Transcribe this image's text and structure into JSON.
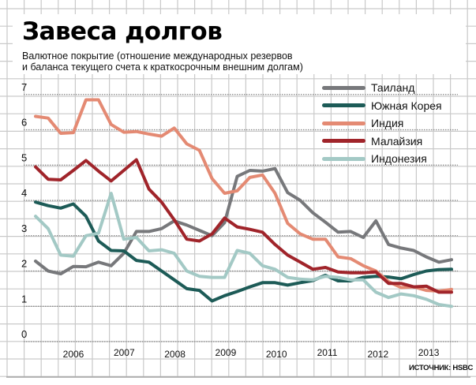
{
  "header": {
    "title": "Завеса долгов",
    "subtitle_line1": "Валютное покрытие (отношение международных резервов",
    "subtitle_line2": "и баланса текущего счета к краткосрочным внешним долгам)"
  },
  "source": "ИСТОЧНИК: HSBC",
  "chart_data": {
    "type": "line",
    "title": "Завеса долгов",
    "xlabel": "",
    "ylabel": "",
    "ylim": [
      0,
      7
    ],
    "yticks": [
      "0",
      "1",
      "2",
      "3",
      "4",
      "5",
      "6",
      "7"
    ],
    "x_tick_labels": [
      "2006",
      "2007",
      "2008",
      "2009",
      "2010",
      "2011",
      "2012",
      "2013"
    ],
    "points_per_series": 34,
    "legend_placement": "top-right",
    "grid": true,
    "series": [
      {
        "name": "Таиланд",
        "color": "#77787b",
        "values": [
          2.28,
          2.0,
          1.92,
          2.13,
          2.12,
          2.25,
          2.15,
          2.5,
          3.12,
          3.12,
          3.2,
          3.42,
          3.3,
          3.15,
          3.0,
          3.37,
          4.68,
          4.85,
          4.83,
          4.9,
          4.22,
          4.0,
          3.65,
          3.38,
          3.1,
          3.12,
          2.95,
          3.42,
          2.75,
          2.65,
          2.58,
          2.4,
          2.25,
          2.32
        ]
      },
      {
        "name": "Южная Корея",
        "color": "#1d5b57",
        "values": [
          3.95,
          3.85,
          3.78,
          3.9,
          3.55,
          2.85,
          2.58,
          2.57,
          2.3,
          2.25,
          2.0,
          1.75,
          1.5,
          1.45,
          1.15,
          1.3,
          1.42,
          1.55,
          1.67,
          1.67,
          1.6,
          1.67,
          1.73,
          1.88,
          1.72,
          1.72,
          1.82,
          1.85,
          1.83,
          1.78,
          1.9,
          2.0,
          2.04,
          2.05
        ]
      },
      {
        "name": "Индия",
        "color": "#e48a73",
        "values": [
          6.38,
          6.33,
          5.9,
          5.92,
          6.85,
          6.85,
          6.15,
          5.93,
          5.95,
          5.88,
          5.82,
          6.05,
          5.6,
          5.42,
          4.62,
          4.2,
          4.27,
          4.65,
          4.72,
          4.2,
          3.35,
          3.05,
          2.9,
          2.9,
          2.4,
          2.35,
          2.15,
          2.0,
          1.7,
          1.53,
          1.55,
          1.45,
          1.43,
          1.48
        ]
      },
      {
        "name": "Малайзия",
        "color": "#a0242a",
        "values": [
          4.95,
          4.6,
          4.58,
          4.85,
          5.13,
          4.83,
          4.55,
          4.85,
          5.15,
          4.32,
          3.95,
          3.45,
          2.9,
          2.85,
          3.05,
          3.5,
          3.25,
          3.18,
          3.1,
          2.75,
          2.45,
          2.25,
          2.05,
          2.1,
          1.97,
          1.95,
          1.95,
          1.97,
          1.65,
          1.65,
          1.55,
          1.57,
          1.4,
          1.4
        ]
      },
      {
        "name": "Индонезия",
        "color": "#a3c9c5",
        "values": [
          3.55,
          3.2,
          2.45,
          2.42,
          3.0,
          3.07,
          4.2,
          2.9,
          2.95,
          2.57,
          2.6,
          2.5,
          2.0,
          1.85,
          1.82,
          1.82,
          2.58,
          2.5,
          2.15,
          2.05,
          1.82,
          1.77,
          1.75,
          1.85,
          1.82,
          1.75,
          1.75,
          1.4,
          1.25,
          1.35,
          1.3,
          1.2,
          1.05,
          1.0
        ]
      }
    ]
  }
}
